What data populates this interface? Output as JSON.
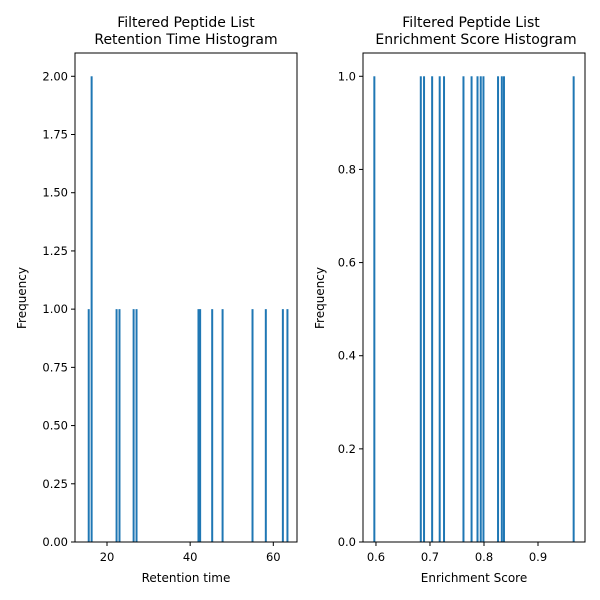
{
  "chart_data": [
    {
      "type": "bar",
      "title_line1": "Filtered Peptide List",
      "title_line2": "Retention Time Histogram",
      "xlabel": "Retention time",
      "ylabel": "Frequency",
      "xlim": [
        12.3,
        65.7
      ],
      "ylim": [
        0,
        2.1
      ],
      "xticks": [
        20,
        40,
        60
      ],
      "yticks": [
        0.0,
        0.25,
        0.5,
        0.75,
        1.0,
        1.25,
        1.5,
        1.75,
        2.0
      ],
      "ytick_labels": [
        "0.00",
        "0.25",
        "0.50",
        "0.75",
        "1.00",
        "1.25",
        "1.50",
        "1.75",
        "2.00"
      ],
      "xtick_labels": [
        "20",
        "40",
        "60"
      ],
      "bin_width": 0.48,
      "bars": [
        {
          "x": 15.6,
          "count": 1
        },
        {
          "x": 16.3,
          "count": 2
        },
        {
          "x": 22.3,
          "count": 1
        },
        {
          "x": 23.0,
          "count": 1
        },
        {
          "x": 26.4,
          "count": 1
        },
        {
          "x": 27.1,
          "count": 1
        },
        {
          "x": 42.0,
          "count": 1
        },
        {
          "x": 42.4,
          "count": 1
        },
        {
          "x": 45.3,
          "count": 1
        },
        {
          "x": 47.8,
          "count": 1
        },
        {
          "x": 55.0,
          "count": 1
        },
        {
          "x": 58.2,
          "count": 1
        },
        {
          "x": 62.3,
          "count": 1
        },
        {
          "x": 63.4,
          "count": 1
        }
      ],
      "bar_color": "#1f77b4"
    },
    {
      "type": "bar",
      "title_line1": "Filtered Peptide List",
      "title_line2": "Enrichment Score Histogram",
      "xlabel": "Enrichment Score",
      "ylabel": "Frequency",
      "xlim": [
        0.576,
        0.987
      ],
      "ylim": [
        0,
        1.05
      ],
      "xticks": [
        0.6,
        0.7,
        0.8,
        0.9
      ],
      "yticks": [
        0.0,
        0.2,
        0.4,
        0.6,
        0.8,
        1.0
      ],
      "ytick_labels": [
        "0.0",
        "0.2",
        "0.4",
        "0.6",
        "0.8",
        "1.0"
      ],
      "xtick_labels": [
        "0.6",
        "0.7",
        "0.8",
        "0.9"
      ],
      "bin_width": 0.0037,
      "bars": [
        {
          "x": 0.597,
          "count": 1
        },
        {
          "x": 0.683,
          "count": 1
        },
        {
          "x": 0.689,
          "count": 1
        },
        {
          "x": 0.704,
          "count": 1
        },
        {
          "x": 0.718,
          "count": 1
        },
        {
          "x": 0.726,
          "count": 1
        },
        {
          "x": 0.762,
          "count": 1
        },
        {
          "x": 0.777,
          "count": 1
        },
        {
          "x": 0.788,
          "count": 1
        },
        {
          "x": 0.794,
          "count": 1
        },
        {
          "x": 0.799,
          "count": 1
        },
        {
          "x": 0.826,
          "count": 1
        },
        {
          "x": 0.833,
          "count": 1
        },
        {
          "x": 0.837,
          "count": 1
        },
        {
          "x": 0.966,
          "count": 1
        }
      ],
      "bar_color": "#1f77b4"
    }
  ]
}
